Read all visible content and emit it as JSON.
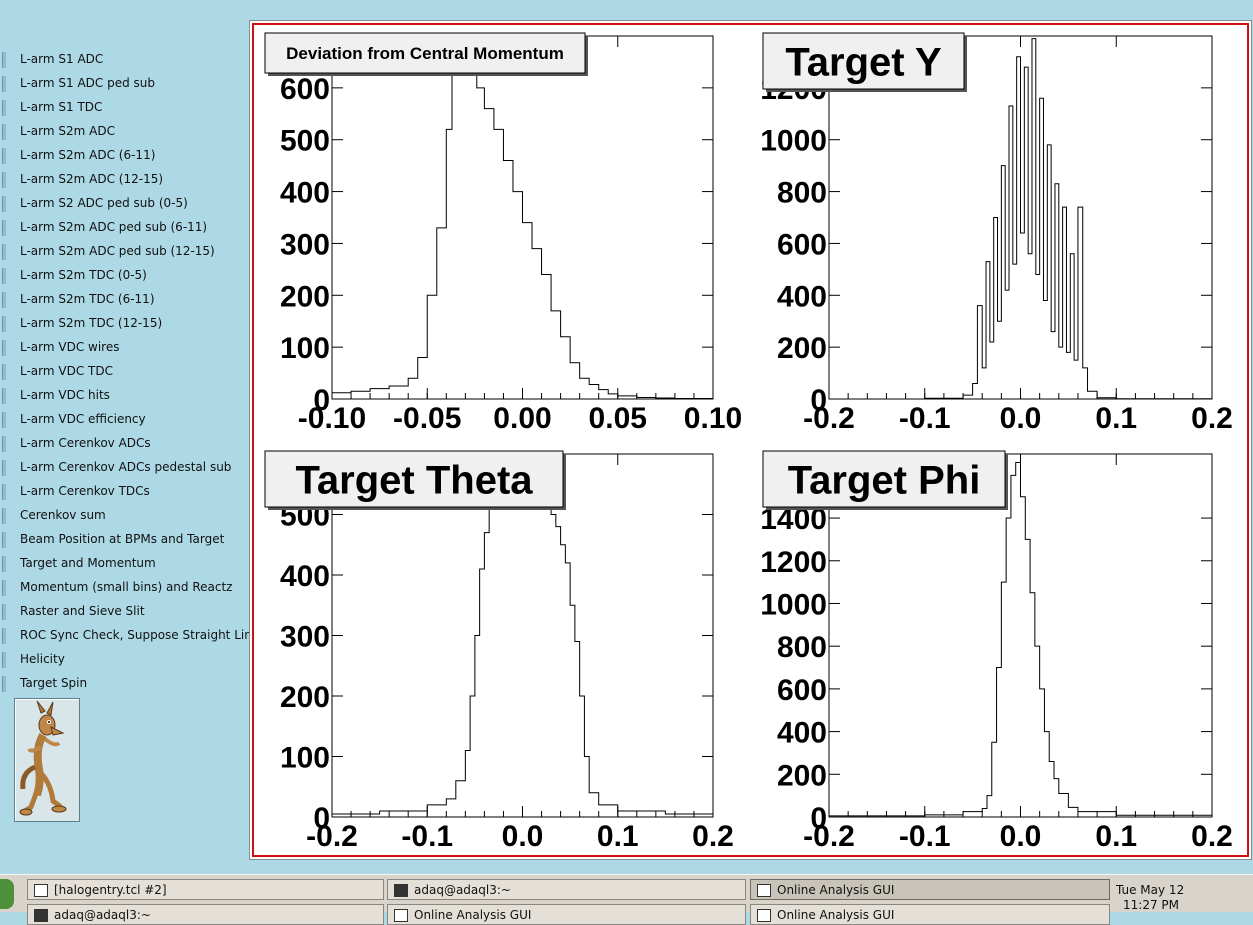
{
  "sidebar": {
    "items": [
      "L-arm S1 ADC",
      "L-arm S1 ADC ped sub",
      "L-arm S1 TDC",
      "L-arm S2m ADC",
      "L-arm S2m ADC (6-11)",
      "L-arm S2m ADC (12-15)",
      "L-arm S2 ADC ped sub (0-5)",
      "L-arm S2m ADC ped sub (6-11)",
      "L-arm S2m ADC ped sub (12-15)",
      "L-arm S2m TDC (0-5)",
      "L-arm S2m TDC (6-11)",
      "L-arm S2m TDC (12-15)",
      "L-arm VDC wires",
      "L-arm VDC TDC",
      "L-arm VDC hits",
      "L-arm VDC efficiency",
      "L-arm Cerenkov ADCs",
      "L-arm Cerenkov ADCs pedestal sub",
      "L-arm Cerenkov TDCs",
      "Cerenkov sum",
      "Beam Position at BPMs and Target",
      "Target and Momentum",
      "Momentum (small bins) and Reactz",
      "Raster and Sieve Slit",
      "ROC Sync Check, Suppose Straight Lines",
      "Helicity",
      "Target Spin"
    ],
    "active_index": 24
  },
  "chart_data": [
    {
      "type": "histogram",
      "title": "Deviation from Central Momentum",
      "xlabel": "",
      "ylabel": "",
      "xlim": [
        -0.1,
        0.1
      ],
      "ylim": [
        0,
        700
      ],
      "xticks": [
        "-0.10",
        "-0.05",
        "0.00",
        "0.05",
        "0.10"
      ],
      "yticks": [
        "0",
        "100",
        "200",
        "300",
        "400",
        "500",
        "600"
      ],
      "x": [
        -0.1,
        -0.09,
        -0.08,
        -0.07,
        -0.06,
        -0.055,
        -0.05,
        -0.045,
        -0.04,
        -0.037,
        -0.034,
        -0.03,
        -0.027,
        -0.024,
        -0.02,
        -0.015,
        -0.01,
        -0.005,
        0.0,
        0.005,
        0.01,
        0.015,
        0.02,
        0.025,
        0.03,
        0.035,
        0.04,
        0.045,
        0.05,
        0.06,
        0.07,
        0.08,
        0.09,
        0.1
      ],
      "values": [
        12,
        15,
        20,
        25,
        40,
        80,
        200,
        330,
        520,
        640,
        700,
        700,
        650,
        600,
        560,
        520,
        460,
        400,
        340,
        290,
        240,
        170,
        120,
        70,
        40,
        28,
        18,
        10,
        6,
        3,
        2,
        1,
        1,
        0
      ]
    },
    {
      "type": "histogram",
      "title": "Target Y",
      "xlabel": "",
      "ylabel": "",
      "xlim": [
        -0.2,
        0.2
      ],
      "ylim": [
        0,
        1400
      ],
      "xticks": [
        "-0.2",
        "-0.1",
        "0.0",
        "0.1",
        "0.2"
      ],
      "yticks": [
        "0",
        "200",
        "400",
        "600",
        "800",
        "1000",
        "1200"
      ],
      "x": [
        -0.2,
        -0.1,
        -0.06,
        -0.05,
        -0.045,
        -0.04,
        -0.036,
        -0.032,
        -0.028,
        -0.024,
        -0.02,
        -0.016,
        -0.012,
        -0.008,
        -0.004,
        0.0,
        0.004,
        0.008,
        0.012,
        0.016,
        0.02,
        0.024,
        0.028,
        0.032,
        0.036,
        0.04,
        0.044,
        0.048,
        0.052,
        0.056,
        0.06,
        0.065,
        0.07,
        0.08,
        0.1,
        0.2
      ],
      "values": [
        0,
        3,
        15,
        60,
        360,
        120,
        530,
        220,
        700,
        300,
        900,
        420,
        1130,
        520,
        1320,
        640,
        1280,
        560,
        1390,
        480,
        1160,
        380,
        980,
        260,
        830,
        200,
        740,
        180,
        560,
        150,
        740,
        120,
        30,
        5,
        1,
        0
      ]
    },
    {
      "type": "histogram",
      "title": "Target Theta",
      "xlabel": "",
      "ylabel": "",
      "xlim": [
        -0.2,
        0.2
      ],
      "ylim": [
        0,
        600
      ],
      "xticks": [
        "-0.2",
        "-0.1",
        "0.0",
        "0.1",
        "0.2"
      ],
      "yticks": [
        "0",
        "100",
        "200",
        "300",
        "400",
        "500"
      ],
      "x": [
        -0.2,
        -0.15,
        -0.1,
        -0.08,
        -0.07,
        -0.06,
        -0.055,
        -0.05,
        -0.045,
        -0.04,
        -0.035,
        -0.03,
        -0.025,
        -0.02,
        -0.01,
        0.0,
        0.01,
        0.02,
        0.025,
        0.03,
        0.035,
        0.04,
        0.045,
        0.05,
        0.055,
        0.06,
        0.065,
        0.07,
        0.08,
        0.1,
        0.15,
        0.2
      ],
      "values": [
        5,
        10,
        20,
        30,
        60,
        110,
        200,
        300,
        410,
        470,
        520,
        570,
        560,
        600,
        620,
        610,
        600,
        580,
        520,
        500,
        480,
        450,
        420,
        350,
        290,
        200,
        100,
        40,
        20,
        10,
        5,
        3
      ]
    },
    {
      "type": "histogram",
      "title": "Target Phi",
      "xlabel": "",
      "ylabel": "",
      "xlim": [
        -0.2,
        0.2
      ],
      "ylim": [
        0,
        1700
      ],
      "xticks": [
        "-0.2",
        "-0.1",
        "0.0",
        "0.1",
        "0.2"
      ],
      "yticks": [
        "0",
        "200",
        "400",
        "600",
        "800",
        "1000",
        "1200",
        "1400"
      ],
      "x": [
        -0.2,
        -0.1,
        -0.06,
        -0.04,
        -0.035,
        -0.03,
        -0.025,
        -0.02,
        -0.015,
        -0.01,
        -0.005,
        0.0,
        0.005,
        0.01,
        0.015,
        0.02,
        0.025,
        0.03,
        0.035,
        0.04,
        0.05,
        0.06,
        0.1,
        0.2
      ],
      "values": [
        5,
        10,
        25,
        40,
        100,
        350,
        700,
        1100,
        1400,
        1600,
        1660,
        1500,
        1300,
        1050,
        800,
        600,
        400,
        260,
        180,
        110,
        45,
        25,
        8,
        2
      ]
    }
  ],
  "taskbar": {
    "row1": [
      "[halogentry.tcl #2]",
      "adaq@adaql3:~",
      "Online Analysis GUI"
    ],
    "row2": [
      "adaq@adaql3:~",
      "Online Analysis GUI",
      "Online Analysis GUI"
    ],
    "clock_date": "Tue May 12",
    "clock_time": "11:27 PM"
  }
}
